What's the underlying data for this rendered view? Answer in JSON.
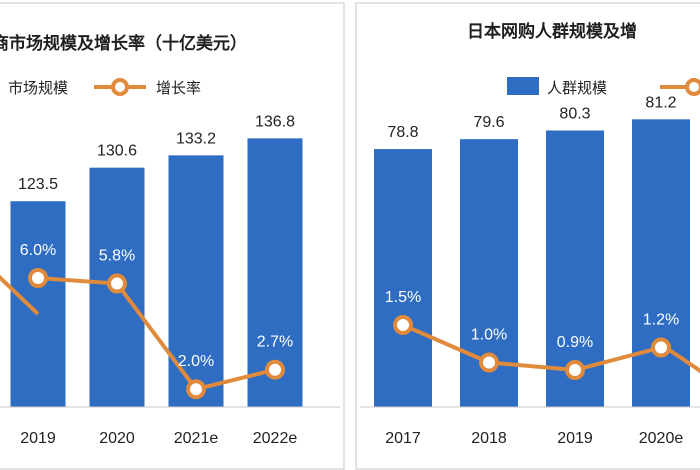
{
  "chart_data": [
    {
      "type": "bar",
      "title": "商市场规模及增长率（十亿美元）",
      "legend": [
        "市场规模",
        "增长率"
      ],
      "categories": [
        "2019",
        "2020",
        "2021e",
        "2022e"
      ],
      "series": [
        {
          "name": "市场规模",
          "type": "bar",
          "values": [
            123.5,
            130.6,
            133.2,
            136.8
          ],
          "labels": [
            "123.5",
            "130.6",
            "133.2",
            "136.8"
          ]
        },
        {
          "name": "增长率",
          "type": "line",
          "values": [
            6.0,
            5.8,
            2.0,
            2.7
          ],
          "labels": [
            "6.0%",
            "5.8%",
            "2.0%",
            "2.7%"
          ]
        }
      ],
      "colors": {
        "bar": "#2E6DC1",
        "line": "#E08A3C"
      }
    },
    {
      "type": "bar",
      "title": "日本网购人群规模及增",
      "legend": [
        "人群规模"
      ],
      "categories": [
        "2017",
        "2018",
        "2019",
        "2020e"
      ],
      "series": [
        {
          "name": "人群规模",
          "type": "bar",
          "values": [
            78.8,
            79.6,
            80.3,
            81.2
          ],
          "labels": [
            "78.8",
            "79.6",
            "80.3",
            "81.2"
          ]
        },
        {
          "type": "line",
          "values": [
            1.5,
            1.0,
            0.9,
            1.2
          ],
          "labels": [
            "1.5%",
            "1.0%",
            "0.9%",
            "1.2%"
          ]
        }
      ],
      "colors": {
        "bar": "#2E6DC1",
        "line": "#E08A3C"
      }
    }
  ]
}
